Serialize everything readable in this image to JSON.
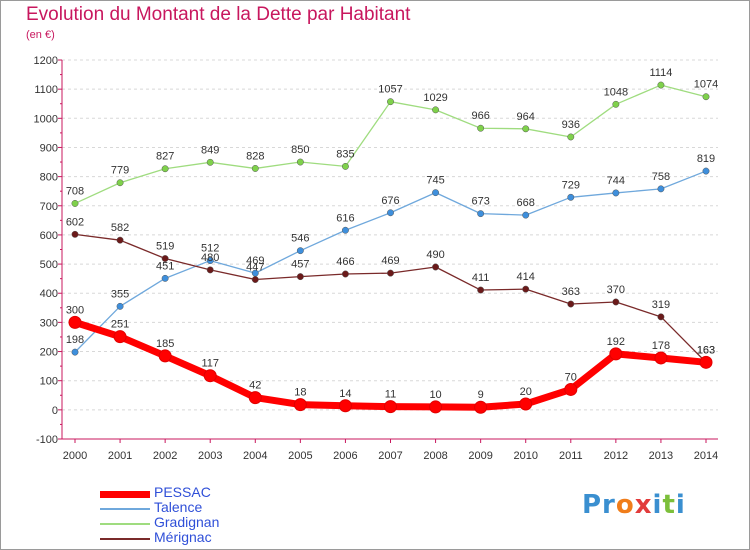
{
  "page": {
    "title": "Evolution du Montant de la Dette par Habitant",
    "unit": "(en €)"
  },
  "logo": {
    "text": "Proxiti"
  },
  "chart_data": {
    "type": "line",
    "title": "Evolution du Montant de la Dette par Habitant",
    "subtitle": "(en €)",
    "xlabel": "",
    "ylabel": "",
    "x": [
      "2000",
      "2001",
      "2002",
      "2003",
      "2004",
      "2005",
      "2006",
      "2007",
      "2008",
      "2009",
      "2010",
      "2011",
      "2012",
      "2013",
      "2014"
    ],
    "ylim": [
      -100,
      1200
    ],
    "yticks": [
      -100,
      0,
      100,
      200,
      300,
      400,
      500,
      600,
      700,
      800,
      900,
      1000,
      1100,
      1200
    ],
    "grid": "horizontal dashed",
    "legend": "bottom-left",
    "series": [
      {
        "name": "Gradignan",
        "color": "#7fd14b",
        "line_color": "#9fdc7f",
        "values": [
          708,
          779,
          827,
          849,
          828,
          850,
          835,
          1057,
          1029,
          966,
          964,
          936,
          1048,
          1114,
          1074
        ]
      },
      {
        "name": "Talence",
        "color": "#3e8fdc",
        "line_color": "#6fa8dc",
        "values": [
          198,
          355,
          451,
          512,
          469,
          546,
          616,
          676,
          745,
          673,
          668,
          729,
          744,
          758,
          819
        ]
      },
      {
        "name": "Mérignac",
        "color": "#6b1a1a",
        "line_color": "#7a2a2a",
        "values": [
          602,
          582,
          519,
          480,
          447,
          457,
          466,
          469,
          490,
          411,
          414,
          363,
          370,
          319,
          163
        ]
      },
      {
        "name": "PESSAC",
        "color": "#ff0000",
        "line_color": "#ff0000",
        "values": [
          300,
          251,
          185,
          117,
          42,
          18,
          14,
          11,
          10,
          9,
          20,
          70,
          192,
          178,
          163
        ]
      }
    ],
    "legend_order": [
      "PESSAC",
      "Talence",
      "Gradignan",
      "Mérignac"
    ]
  }
}
